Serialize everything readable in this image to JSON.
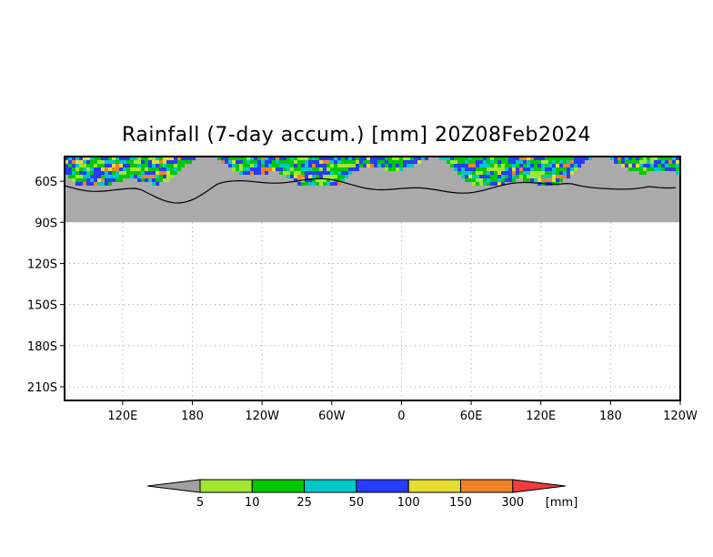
{
  "chart_data": {
    "type": "heatmap",
    "title": "Rainfall (7-day accum.) [mm] 20Z08Feb2024",
    "xlabel": "",
    "ylabel": "",
    "x_ticks": [
      "120E",
      "180",
      "120W",
      "60W",
      "0",
      "60E",
      "120E",
      "180",
      "120W"
    ],
    "x_tick_lon": [
      120,
      180,
      240,
      300,
      360,
      420,
      480,
      540,
      600
    ],
    "xlim_lon": [
      70,
      600
    ],
    "y_ticks": [
      "60S",
      "90S",
      "120S",
      "150S",
      "180S",
      "210S"
    ],
    "y_tick_lat": [
      -60,
      -90,
      -120,
      -150,
      -180,
      -210
    ],
    "ylim_lat": [
      -220,
      -42
    ],
    "masked_region_lat": [
      -90,
      -42
    ],
    "grid": true,
    "colorbar": {
      "levels": [
        "5",
        "10",
        "25",
        "50",
        "100",
        "150",
        "300"
      ],
      "unit": "[mm]",
      "colors": [
        "#a0a0a0",
        "#a0e632",
        "#00c800",
        "#00c8c8",
        "#283cff",
        "#e6dc32",
        "#f08228",
        "#f03c3c"
      ]
    }
  }
}
